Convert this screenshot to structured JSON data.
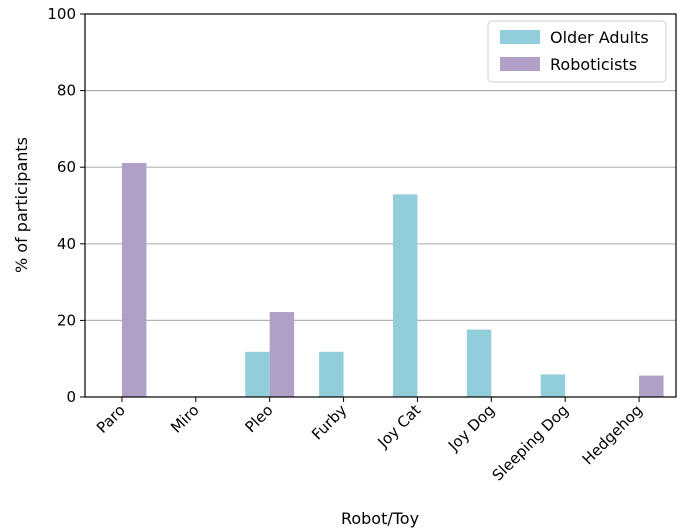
{
  "chart_data": {
    "type": "bar",
    "xlabel": "Robot/Toy",
    "ylabel": "% of participants",
    "ylim": [
      0,
      100
    ],
    "yticks": [
      0,
      20,
      40,
      60,
      80,
      100
    ],
    "grid": "horizontal",
    "legend_position": "top-right",
    "categories": [
      "Paro",
      "Miro",
      "Pleo",
      "Furby",
      "Joy Cat",
      "Joy Dog",
      "Sleeping Dog",
      "Hedgehog"
    ],
    "series": [
      {
        "name": "Older Adults",
        "color": "#92cddc",
        "values": [
          0,
          0,
          11.8,
          11.8,
          52.9,
          17.6,
          5.9,
          0
        ]
      },
      {
        "name": "Roboticists",
        "color": "#b0a0c8",
        "values": [
          61.1,
          0,
          22.2,
          0,
          0,
          0,
          0,
          5.6
        ]
      }
    ]
  }
}
